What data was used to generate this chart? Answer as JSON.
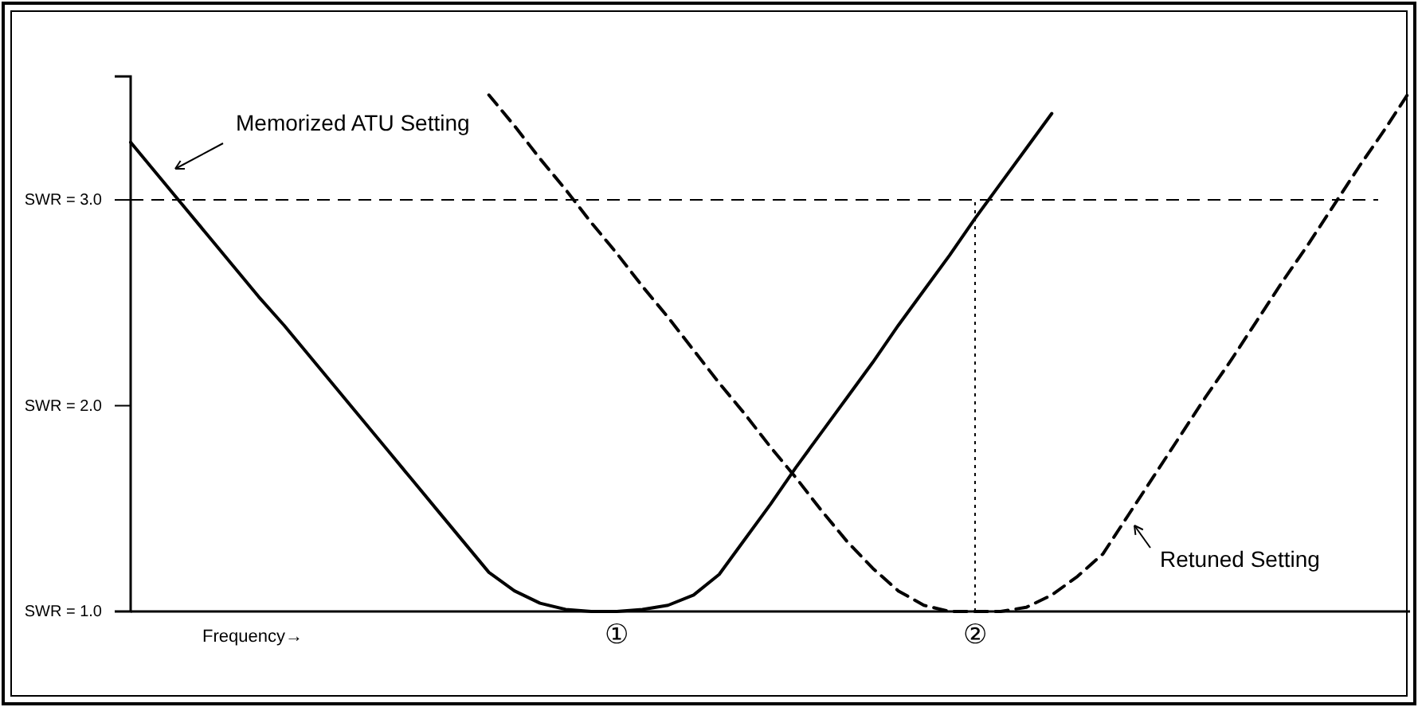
{
  "chart_data": {
    "type": "line",
    "xlabel": "Frequency→",
    "categories": [
      null,
      null,
      null,
      null,
      null,
      null,
      null,
      null,
      null,
      null,
      null,
      null,
      null,
      null,
      null,
      null,
      null,
      null,
      null,
      "①",
      null,
      null,
      null,
      null,
      null,
      null,
      null,
      null,
      null,
      null,
      null,
      null,
      null,
      "②",
      null,
      null,
      null,
      null,
      null,
      null,
      null,
      null,
      null,
      null,
      null,
      null,
      null,
      null,
      null,
      null,
      null
    ],
    "ylim": [
      1,
      3.6
    ],
    "yticks": [
      {
        "value": 1,
        "label": "SWR = 1.0"
      },
      {
        "value": 2,
        "label": "SWR = 2.0"
      },
      {
        "value": 3,
        "label": "SWR = 3.0"
      }
    ],
    "grid": false,
    "marker": "none",
    "series": [
      {
        "color": "#000000",
        "line_style": "solid",
        "values": [
          3.28,
          3.13,
          2.98,
          2.83,
          2.68,
          2.53,
          2.39,
          2.24,
          2.09,
          1.94,
          1.79,
          1.64,
          1.49,
          1.34,
          1.19,
          1.1,
          1.04,
          1.01,
          1.0,
          1.0,
          1.01,
          1.03,
          1.08,
          1.18,
          1.35,
          1.52,
          1.7,
          1.87,
          2.04,
          2.21,
          2.39,
          2.56,
          2.73,
          2.91,
          3.08,
          3.25,
          3.42,
          null,
          null,
          null,
          null,
          null,
          null,
          null,
          null,
          null,
          null,
          null,
          null,
          null,
          null
        ]
      },
      {
        "color": "#000000",
        "line_style": "dashed",
        "values": [
          null,
          null,
          null,
          null,
          null,
          null,
          null,
          null,
          null,
          null,
          null,
          null,
          null,
          null,
          3.51,
          3.36,
          3.2,
          3.05,
          2.89,
          2.74,
          2.58,
          2.43,
          2.27,
          2.11,
          1.96,
          1.8,
          1.65,
          1.49,
          1.34,
          1.21,
          1.1,
          1.03,
          1.0,
          1.0,
          1.0,
          1.02,
          1.08,
          1.17,
          1.28,
          1.47,
          1.66,
          1.85,
          2.04,
          2.22,
          2.41,
          2.6,
          2.78,
          2.97,
          3.16,
          3.34,
          3.53
        ]
      }
    ],
    "ref_lines": [
      {
        "axis": "y",
        "value": 3,
        "color": "#000000",
        "line_style": "dashed"
      },
      {
        "axis": "x",
        "value": "②",
        "color": "#000000",
        "line_style": "dotted"
      }
    ],
    "annotations": [
      "Memorized ATU Setting",
      "Retuned Setting"
    ]
  }
}
